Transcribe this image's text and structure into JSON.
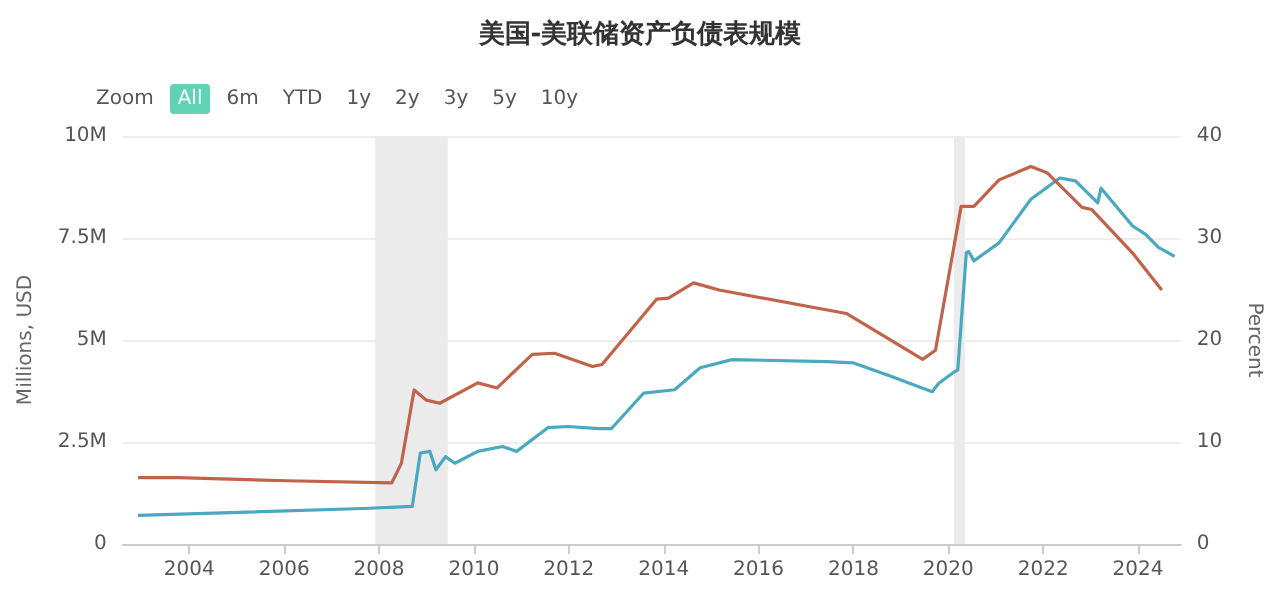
{
  "chart_data": {
    "type": "line",
    "title": "美国-美联储资产负债表规模",
    "ylabel": "Millions, USD",
    "y2label": "Percent",
    "annotations": [
      "Zoom",
      "All",
      "6m",
      "YTD",
      "1y",
      "2y",
      "3y",
      "5y",
      "10y"
    ],
    "xlim": [
      2002.6,
      2024.9
    ],
    "xticks": [
      2004,
      2006,
      2008,
      2010,
      2012,
      2014,
      2016,
      2018,
      2020,
      2022,
      2024
    ],
    "ylim": [
      0,
      10
    ],
    "yticks": [
      0,
      {
        "value": 2.5,
        "label": "2.5M"
      },
      {
        "value": 5,
        "label": "5M"
      },
      {
        "value": 7.5,
        "label": "7.5M"
      },
      {
        "value": 10,
        "label": "10M"
      }
    ],
    "y2lim": [
      0,
      40
    ],
    "y2ticks": [
      0,
      10,
      20,
      30,
      40
    ],
    "grid": "y",
    "marker": "none",
    "line_style": "solid",
    "bands": [
      {
        "axis": "x",
        "from": 2007.92,
        "to": 2009.45,
        "color": "#ebebeb"
      },
      {
        "axis": "x",
        "from": 2020.12,
        "to": 2020.35,
        "color": "#ebebeb"
      }
    ],
    "series": [
      {
        "color": "#4aa8c0",
        "x": [
          2002.92,
          2007.66,
          2008.7,
          2008.87,
          2009.07,
          2009.2,
          2009.4,
          2009.6,
          2010.08,
          2010.6,
          2010.9,
          2011.56,
          2011.97,
          2012.64,
          2012.9,
          2013.58,
          2014.23,
          2014.77,
          2015.44,
          2017.45,
          2017.99,
          2018.79,
          2019.66,
          2019.8,
          2020.13,
          2020.2,
          2020.38,
          2020.43,
          2020.54,
          2021.07,
          2021.74,
          2022.35,
          2022.68,
          2023.15,
          2023.22,
          2023.89,
          2024.16,
          2024.43,
          2024.77
        ],
        "values": [
          0.7,
          0.87,
          0.92,
          2.23,
          2.27,
          1.82,
          2.14,
          1.98,
          2.27,
          2.39,
          2.27,
          2.85,
          2.88,
          2.83,
          2.83,
          3.7,
          3.78,
          4.32,
          4.52,
          4.47,
          4.44,
          4.11,
          3.73,
          3.94,
          4.22,
          4.27,
          7.14,
          7.17,
          6.94,
          7.38,
          8.45,
          8.97,
          8.9,
          8.36,
          8.72,
          7.79,
          7.59,
          7.27,
          7.05
        ]
      },
      {
        "color": "#c0634a",
        "axis": "y2",
        "x": [
          2002.92,
          2003.76,
          2006.05,
          2008.27,
          2008.47,
          2008.74,
          2009.0,
          2009.28,
          2010.08,
          2010.49,
          2011.23,
          2011.7,
          2012.5,
          2012.7,
          2013.85,
          2014.1,
          2014.63,
          2015.17,
          2017.85,
          2019.46,
          2019.73,
          2020.27,
          2020.54,
          2021.07,
          2021.74,
          2022.08,
          2022.82,
          2023.02,
          2023.89,
          2024.5
        ],
        "values": [
          6.5,
          6.5,
          6.2,
          6.0,
          7.9,
          15.1,
          14.1,
          13.8,
          15.8,
          15.3,
          18.6,
          18.7,
          17.4,
          17.6,
          24.0,
          24.1,
          25.6,
          24.9,
          22.6,
          18.1,
          19.0,
          33.1,
          33.1,
          35.7,
          37.0,
          36.4,
          33.0,
          32.8,
          28.5,
          24.9
        ]
      }
    ]
  }
}
